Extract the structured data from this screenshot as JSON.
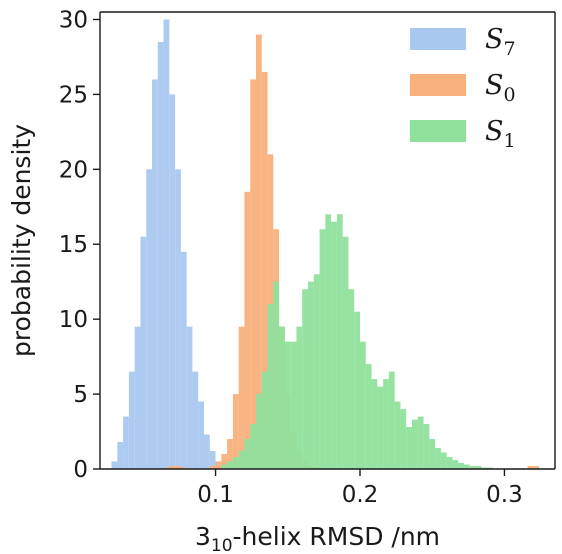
{
  "chart_data": {
    "type": "bar",
    "subtype": "histogram",
    "xlabel_main": "3",
    "xlabel_sub": "10",
    "xlabel_rest": "-helix RMSD /nm",
    "ylabel": "probability density",
    "xlim": [
      0.02,
      0.335
    ],
    "ylim": [
      0,
      30.5
    ],
    "xticks": [
      0.1,
      0.2,
      0.3
    ],
    "xtick_labels": [
      "0.1",
      "0.2",
      "0.3"
    ],
    "yticks": [
      0,
      5,
      10,
      15,
      20,
      25,
      30
    ],
    "ytick_labels": [
      "0",
      "5",
      "10",
      "15",
      "20",
      "25",
      "30"
    ],
    "grid": false,
    "legend_position": "top-right",
    "bin_width": 0.004,
    "series": [
      {
        "name": "S",
        "name_sub": "7",
        "color": "#a9c8f0",
        "bins": [
          [
            0.028,
            0.5
          ],
          [
            0.032,
            1.8
          ],
          [
            0.036,
            3.5
          ],
          [
            0.04,
            6.5
          ],
          [
            0.044,
            9.5
          ],
          [
            0.048,
            15.5
          ],
          [
            0.052,
            20.0
          ],
          [
            0.056,
            26.0
          ],
          [
            0.06,
            28.5
          ],
          [
            0.064,
            30.0
          ],
          [
            0.068,
            25.0
          ],
          [
            0.072,
            20.0
          ],
          [
            0.076,
            14.5
          ],
          [
            0.08,
            9.5
          ],
          [
            0.084,
            6.5
          ],
          [
            0.088,
            4.5
          ],
          [
            0.092,
            2.3
          ],
          [
            0.096,
            1.2
          ],
          [
            0.1,
            0.5
          ]
        ]
      },
      {
        "name": "S",
        "name_sub": "0",
        "color": "#f8b07c",
        "bins": [
          [
            0.064,
            0.1
          ],
          [
            0.068,
            0.2
          ],
          [
            0.072,
            0.2
          ],
          [
            0.076,
            0.1
          ],
          [
            0.096,
            0.2
          ],
          [
            0.1,
            0.5
          ],
          [
            0.104,
            1.0
          ],
          [
            0.108,
            2.0
          ],
          [
            0.112,
            5.0
          ],
          [
            0.116,
            9.5
          ],
          [
            0.12,
            18.5
          ],
          [
            0.124,
            26.0
          ],
          [
            0.128,
            29.0
          ],
          [
            0.132,
            26.5
          ],
          [
            0.136,
            21.0
          ],
          [
            0.14,
            16.0
          ],
          [
            0.144,
            9.5
          ],
          [
            0.148,
            5.0
          ],
          [
            0.152,
            2.5
          ],
          [
            0.156,
            1.2
          ],
          [
            0.16,
            0.5
          ],
          [
            0.164,
            0.2
          ],
          [
            0.168,
            0.1
          ],
          [
            0.316,
            0.2
          ],
          [
            0.32,
            0.2
          ]
        ]
      },
      {
        "name": "S",
        "name_sub": "1",
        "color": "#8fe09c",
        "bins": [
          [
            0.104,
            0.3
          ],
          [
            0.108,
            0.5
          ],
          [
            0.112,
            0.8
          ],
          [
            0.116,
            1.2
          ],
          [
            0.12,
            2.0
          ],
          [
            0.124,
            3.0
          ],
          [
            0.128,
            5.0
          ],
          [
            0.132,
            6.5
          ],
          [
            0.136,
            11.0
          ],
          [
            0.14,
            12.5
          ],
          [
            0.144,
            9.5
          ],
          [
            0.148,
            8.5
          ],
          [
            0.152,
            8.5
          ],
          [
            0.156,
            9.5
          ],
          [
            0.16,
            12.0
          ],
          [
            0.164,
            12.5
          ],
          [
            0.168,
            13.0
          ],
          [
            0.172,
            16.0
          ],
          [
            0.176,
            17.0
          ],
          [
            0.18,
            16.5
          ],
          [
            0.184,
            17.0
          ],
          [
            0.188,
            15.5
          ],
          [
            0.192,
            12.0
          ],
          [
            0.196,
            10.5
          ],
          [
            0.2,
            8.5
          ],
          [
            0.204,
            7.0
          ],
          [
            0.208,
            6.0
          ],
          [
            0.212,
            5.5
          ],
          [
            0.216,
            6.0
          ],
          [
            0.22,
            6.5
          ],
          [
            0.224,
            4.5
          ],
          [
            0.228,
            4.0
          ],
          [
            0.232,
            2.8
          ],
          [
            0.236,
            3.3
          ],
          [
            0.24,
            3.5
          ],
          [
            0.244,
            3.0
          ],
          [
            0.248,
            2.0
          ],
          [
            0.252,
            1.4
          ],
          [
            0.256,
            1.1
          ],
          [
            0.26,
            0.8
          ],
          [
            0.264,
            0.6
          ],
          [
            0.268,
            0.4
          ],
          [
            0.272,
            0.3
          ],
          [
            0.276,
            0.2
          ],
          [
            0.28,
            0.2
          ],
          [
            0.284,
            0.1
          ],
          [
            0.288,
            0.1
          ]
        ]
      }
    ]
  }
}
